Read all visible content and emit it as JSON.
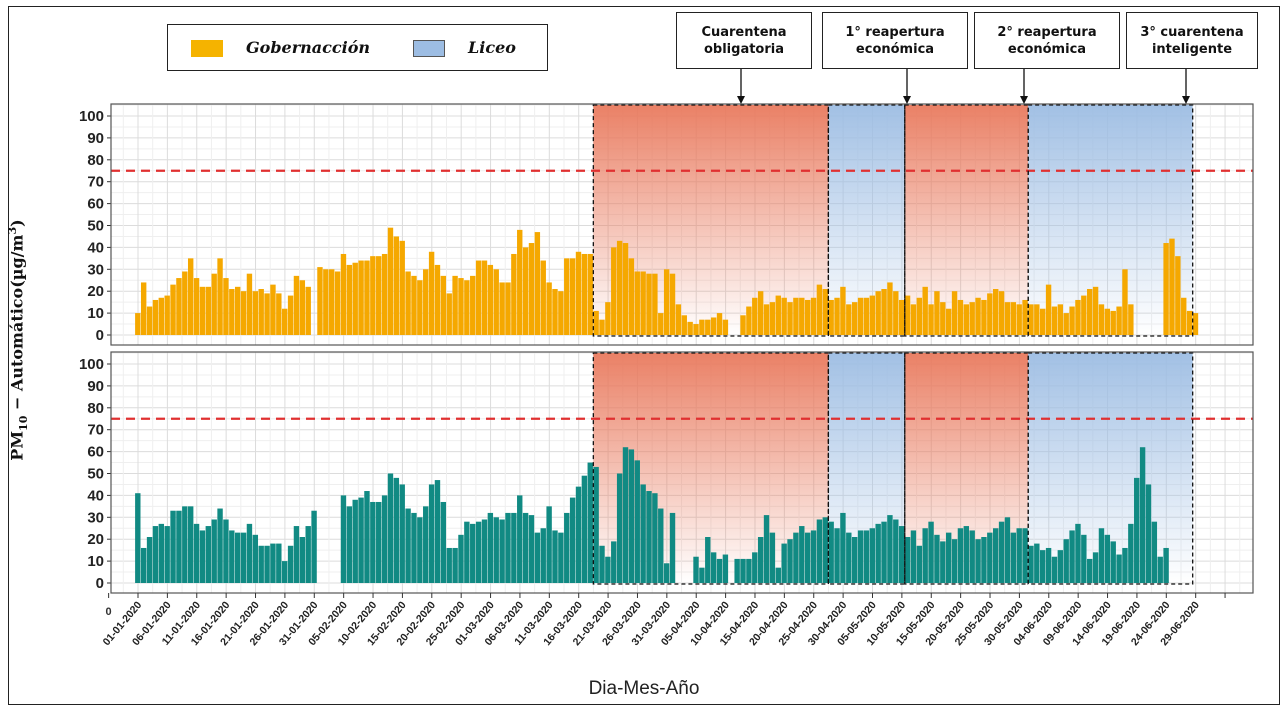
{
  "chart_data": {
    "type": "bar",
    "ylabel": "PM10 − Automático(µg/m3)",
    "ylabel_parts": {
      "pm": "PM",
      "pm_sub": "10",
      "rest": " − Automático(µg/m",
      "sup": "3",
      "close": ")"
    },
    "xlabel": "Dia-Mes-Año",
    "ylim": [
      0,
      100
    ],
    "yticks": [
      0,
      10,
      20,
      30,
      40,
      50,
      60,
      70,
      80,
      90,
      100
    ],
    "threshold": 75,
    "threshold_color": "#e03030",
    "grid": true,
    "legend_position": "top-left",
    "x_start_tick": "0",
    "x_ticks": [
      "01-01-2020",
      "06-01-2020",
      "11-01-2020",
      "16-01-2020",
      "21-01-2020",
      "26-01-2020",
      "31-01-2020",
      "05-02-2020",
      "10-02-2020",
      "15-02-2020",
      "20-02-2020",
      "25-02-2020",
      "01-03-2020",
      "06-03-2020",
      "11-03-2020",
      "16-03-2020",
      "21-03-2020",
      "26-03-2020",
      "31-03-2020",
      "05-04-2020",
      "10-04-2020",
      "15-04-2020",
      "20-04-2020",
      "25-04-2020",
      "30-04-2020",
      "05-05-2020",
      "10-05-2020",
      "15-05-2020",
      "20-05-2020",
      "25-05-2020",
      "30-05-2020",
      "04-06-2020",
      "09-06-2020",
      "14-06-2020",
      "19-06-2020",
      "24-06-2020",
      "29-06-2020"
    ],
    "periods": [
      {
        "label": "Cuarentena\nobligatoria",
        "start_day": 78,
        "end_day": 118,
        "color": "#e97a5e"
      },
      {
        "label": "1° reapertura\neconómica",
        "start_day": 118,
        "end_day": 131,
        "color": "#9dbde3"
      },
      {
        "label": "2° reapertura\neconómica",
        "start_day": 131,
        "end_day": 152,
        "color": "#e97a5e"
      },
      {
        "label": "3° cuarentena\ninteligente",
        "start_day": 152,
        "end_day": 180,
        "color": "#9dbde3"
      }
    ],
    "series": [
      {
        "name": "Gobernacción",
        "color": "#f5a800",
        "values": [
          10,
          24,
          13,
          16,
          17,
          18,
          23,
          26,
          29,
          35,
          26,
          22,
          22,
          28,
          35,
          26,
          21,
          22,
          20,
          28,
          20,
          21,
          19,
          23,
          19,
          12,
          18,
          27,
          25,
          22,
          null,
          31,
          30,
          30,
          29,
          37,
          32,
          33,
          34,
          34,
          36,
          36,
          37,
          49,
          45,
          43,
          29,
          27,
          25,
          30,
          38,
          32,
          27,
          19,
          27,
          26,
          25,
          27,
          34,
          34,
          32,
          30,
          24,
          24,
          37,
          48,
          40,
          42,
          47,
          34,
          24,
          21,
          20,
          35,
          35,
          38,
          37,
          37,
          11,
          7,
          15,
          40,
          43,
          42,
          35,
          29,
          29,
          28,
          28,
          10,
          30,
          28,
          14,
          9,
          6,
          5,
          7,
          7,
          8,
          10,
          7,
          null,
          null,
          9,
          13,
          17,
          20,
          14,
          15,
          18,
          17,
          15,
          17,
          17,
          16,
          17,
          23,
          21,
          16,
          17,
          22,
          14,
          15,
          17,
          17,
          18,
          20,
          21,
          24,
          20,
          16,
          18,
          14,
          17,
          22,
          14,
          20,
          15,
          12,
          20,
          16,
          14,
          15,
          17,
          16,
          19,
          21,
          20,
          15,
          15,
          14,
          16,
          14,
          14,
          12,
          23,
          13,
          14,
          10,
          13,
          16,
          18,
          21,
          22,
          14,
          12,
          11,
          13,
          30,
          14,
          null,
          null,
          null,
          null,
          null,
          42,
          44,
          36,
          17,
          11,
          10
        ]
      },
      {
        "name": "Liceo",
        "color": "#118a83",
        "values": [
          41,
          16,
          21,
          26,
          27,
          26,
          33,
          33,
          35,
          35,
          27,
          24,
          26,
          29,
          34,
          29,
          24,
          23,
          23,
          27,
          22,
          17,
          17,
          18,
          18,
          10,
          17,
          26,
          21,
          26,
          33,
          null,
          null,
          null,
          null,
          40,
          35,
          38,
          39,
          42,
          37,
          37,
          40,
          50,
          48,
          45,
          34,
          32,
          30,
          35,
          45,
          47,
          37,
          16,
          16,
          22,
          28,
          27,
          28,
          29,
          32,
          30,
          29,
          32,
          32,
          40,
          32,
          31,
          23,
          25,
          35,
          24,
          23,
          32,
          39,
          44,
          49,
          55,
          53,
          17,
          12,
          19,
          50,
          62,
          61,
          56,
          45,
          42,
          41,
          34,
          9,
          32,
          null,
          null,
          null,
          12,
          7,
          21,
          14,
          11,
          13,
          null,
          11,
          11,
          11,
          14,
          21,
          31,
          23,
          7,
          18,
          20,
          23,
          26,
          23,
          24,
          29,
          30,
          28,
          25,
          32,
          23,
          21,
          24,
          24,
          25,
          27,
          28,
          31,
          29,
          26,
          21,
          24,
          17,
          25,
          28,
          22,
          19,
          23,
          20,
          25,
          26,
          24,
          20,
          21,
          23,
          25,
          28,
          30,
          23,
          25,
          25,
          17,
          18,
          15,
          16,
          12,
          15,
          20,
          24,
          27,
          22,
          11,
          14,
          25,
          22,
          19,
          13,
          16,
          27,
          48,
          62,
          45,
          28,
          12,
          16
        ]
      }
    ]
  }
}
